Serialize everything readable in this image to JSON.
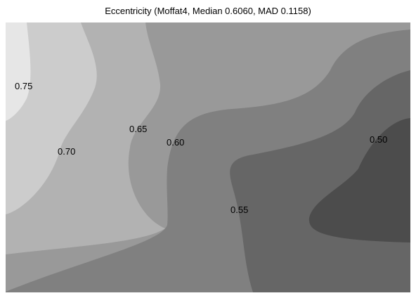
{
  "chart_data": {
    "type": "contour",
    "title": "Eccentricity (Moffat4, Median 0.6060, MAD 0.1158)",
    "xlabel": "",
    "ylabel": "",
    "grid": false,
    "legend": "none",
    "levels": [
      {
        "value": "0.75",
        "fill": "#e6e6e6"
      },
      {
        "value": "0.70",
        "fill": "#cccccc"
      },
      {
        "value": "0.65",
        "fill": "#b2b2b2"
      },
      {
        "value": "0.60",
        "fill": "#999999"
      },
      {
        "value": "0.55",
        "fill": "#808080"
      },
      {
        "value": "0.50",
        "fill": "#666666"
      },
      {
        "value": "",
        "fill": "#4c4c4c"
      }
    ],
    "contour_labels": [
      "0.75",
      "0.70",
      "0.65",
      "0.60",
      "0.55",
      "0.50"
    ]
  }
}
